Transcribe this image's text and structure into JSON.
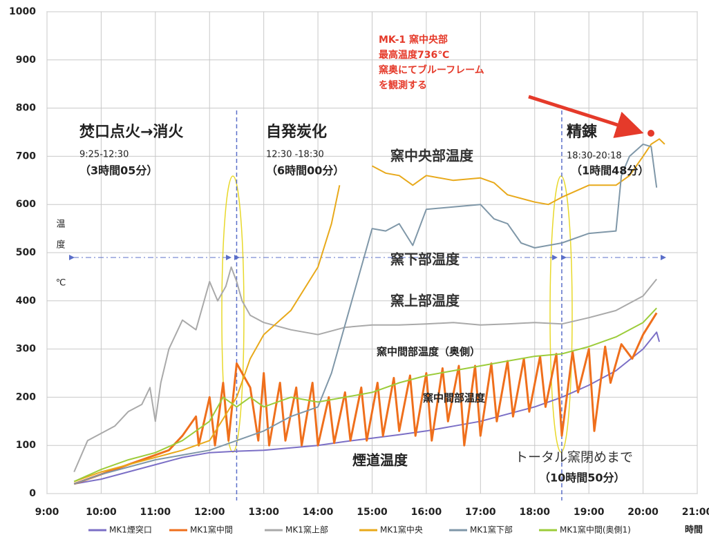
{
  "chart_data": {
    "type": "line",
    "xlim": [
      9,
      21
    ],
    "ylim": [
      0,
      1000
    ],
    "xticks": [
      {
        "value": 9,
        "label": "9:00"
      },
      {
        "value": 10,
        "label": "10:00"
      },
      {
        "value": 11,
        "label": "11:00"
      },
      {
        "value": 12,
        "label": "12:00"
      },
      {
        "value": 13,
        "label": "13:00"
      },
      {
        "value": 14,
        "label": "14:00"
      },
      {
        "value": 15,
        "label": "15:00"
      },
      {
        "value": 16,
        "label": "16:00"
      },
      {
        "value": 17,
        "label": "17:00"
      },
      {
        "value": 18,
        "label": "18:00"
      },
      {
        "value": 19,
        "label": "19:00"
      },
      {
        "value": 20,
        "label": "20:00"
      },
      {
        "value": 21,
        "label": "21:00"
      }
    ],
    "yticks": [
      0,
      100,
      200,
      300,
      400,
      500,
      600,
      700,
      800,
      900,
      1000
    ],
    "grid": true,
    "x_label": "時間",
    "y_label": [
      "温",
      "度",
      "℃"
    ],
    "vlines": [
      12.5,
      18.5
    ],
    "series": [
      {
        "name": "MK1煙突口",
        "color": "#7b6fc6",
        "x": [
          9.5,
          10,
          10.5,
          11,
          11.5,
          12,
          12.5,
          13,
          13.5,
          14,
          14.5,
          15,
          15.5,
          16,
          16.5,
          17,
          17.5,
          18,
          18.5,
          19,
          19.5,
          20,
          20.25,
          20.3
        ],
        "values": [
          20,
          30,
          45,
          60,
          75,
          85,
          88,
          90,
          95,
          100,
          108,
          115,
          122,
          130,
          140,
          150,
          165,
          180,
          200,
          225,
          255,
          300,
          335,
          315
        ]
      },
      {
        "name": "MK1窯中間",
        "color": "#ef6f1c",
        "x": [
          9.5,
          10,
          10.5,
          11,
          11.25,
          11.5,
          11.75,
          11.8,
          12,
          12.1,
          12.25,
          12.35,
          12.5,
          12.75,
          12.9,
          13,
          13.1,
          13.3,
          13.4,
          13.6,
          13.7,
          13.9,
          14,
          14.2,
          14.3,
          14.5,
          14.6,
          14.8,
          14.9,
          15.1,
          15.2,
          15.4,
          15.5,
          15.7,
          15.8,
          16,
          16.1,
          16.3,
          16.4,
          16.6,
          16.7,
          16.9,
          17,
          17.2,
          17.3,
          17.5,
          17.6,
          17.8,
          17.9,
          18.1,
          18.2,
          18.4,
          18.5,
          18.7,
          18.8,
          19,
          19.1,
          19.3,
          19.4,
          19.6,
          19.8,
          20,
          20.25
        ],
        "values": [
          20,
          40,
          60,
          80,
          90,
          120,
          160,
          100,
          200,
          100,
          230,
          110,
          270,
          220,
          110,
          250,
          100,
          230,
          110,
          220,
          100,
          230,
          100,
          200,
          105,
          210,
          110,
          220,
          110,
          230,
          120,
          240,
          130,
          245,
          120,
          250,
          110,
          260,
          150,
          265,
          100,
          265,
          120,
          270,
          150,
          275,
          160,
          280,
          170,
          285,
          180,
          290,
          120,
          295,
          210,
          300,
          130,
          305,
          230,
          310,
          280,
          330,
          375
        ]
      },
      {
        "name": "MK1窯上部",
        "color": "#a9a9a9",
        "x": [
          9.5,
          9.75,
          10,
          10.25,
          10.5,
          10.75,
          10.9,
          11,
          11.1,
          11.25,
          11.5,
          11.75,
          12,
          12.15,
          12.3,
          12.4,
          12.5,
          12.6,
          12.75,
          13,
          13.5,
          14,
          14.5,
          15,
          15.5,
          16,
          16.5,
          17,
          17.5,
          18,
          18.5,
          19,
          19.5,
          20,
          20.25
        ],
        "values": [
          45,
          110,
          125,
          140,
          170,
          185,
          220,
          150,
          230,
          300,
          360,
          340,
          440,
          400,
          430,
          470,
          440,
          400,
          370,
          355,
          340,
          330,
          345,
          350,
          350,
          352,
          355,
          350,
          352,
          355,
          352,
          365,
          380,
          410,
          445
        ]
      },
      {
        "name": "MK1窯中央",
        "color": "#e8a91a",
        "x": [
          9.5,
          10,
          10.5,
          11,
          11.5,
          12,
          12.5,
          12.75,
          13,
          13.5,
          14,
          14.25,
          14.4,
          14.7,
          15,
          15.25,
          15.5,
          15.75,
          16,
          16.5,
          17,
          17.25,
          17.5,
          18,
          18.25,
          18.5,
          19,
          19.5,
          19.75,
          20,
          20.15,
          20.3,
          20.4
        ],
        "values": [
          25,
          45,
          60,
          75,
          90,
          110,
          200,
          280,
          330,
          380,
          470,
          560,
          640,
          null,
          680,
          665,
          660,
          640,
          660,
          650,
          655,
          645,
          620,
          605,
          600,
          615,
          640,
          640,
          660,
          700,
          725,
          736,
          725
        ]
      },
      {
        "name": "MK1窯下部",
        "color": "#7f97a8",
        "x": [
          9.5,
          10,
          11,
          12,
          12.5,
          13,
          13.5,
          14,
          14.25,
          14.5,
          14.75,
          15,
          15.25,
          15.5,
          15.75,
          16,
          16.5,
          17,
          17.25,
          17.5,
          17.75,
          18,
          18.5,
          19,
          19.5,
          19.6,
          19.75,
          20,
          20.15,
          20.25
        ],
        "values": [
          20,
          40,
          70,
          90,
          110,
          130,
          160,
          180,
          250,
          350,
          450,
          550,
          545,
          560,
          515,
          590,
          595,
          600,
          570,
          560,
          520,
          510,
          520,
          540,
          545,
          660,
          700,
          725,
          720,
          635
        ]
      },
      {
        "name": "MK1窯中間(奥側1)",
        "color": "#9ccc3a",
        "x": [
          9.5,
          10,
          10.5,
          11,
          11.5,
          12,
          12.25,
          12.5,
          12.75,
          13,
          13.5,
          14,
          14.5,
          15,
          15.5,
          16,
          16.5,
          17,
          17.5,
          18,
          18.5,
          19,
          19.5,
          20,
          20.25
        ],
        "values": [
          25,
          50,
          70,
          85,
          110,
          150,
          200,
          180,
          200,
          180,
          200,
          190,
          200,
          210,
          230,
          245,
          255,
          265,
          275,
          285,
          290,
          305,
          325,
          355,
          385
        ]
      }
    ],
    "annotations": [
      "焚口点火→消火",
      "9:25-12:30",
      "（3時間05分）",
      "自発炭化",
      "12:30 -18:30",
      "（6時間00分）",
      "精錬",
      "18:30-20:18",
      "（1時間48分）",
      "窯中央部温度",
      "窯下部温度",
      "窯上部温度",
      "窯中間部温度（奥側）",
      "窯中間部温度",
      "煙道温度",
      "トータル窯閉めまで",
      "（10時間50分）",
      "MK-1 窯中央部",
      "最高温度736℃",
      "窯奥にてブルーフレーム",
      "を観測する"
    ]
  }
}
